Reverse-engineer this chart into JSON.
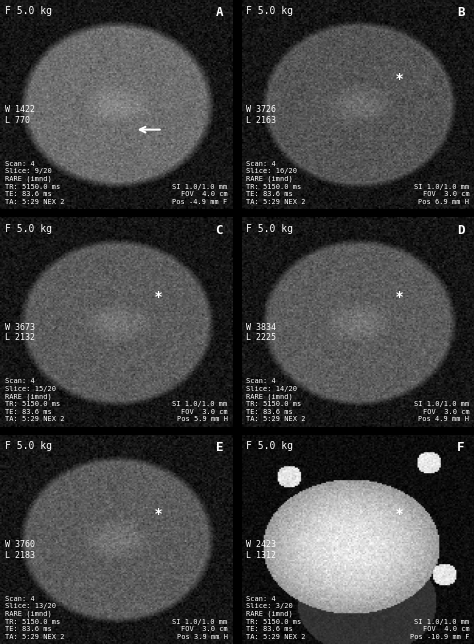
{
  "panels": [
    {
      "label": "A",
      "row": 0,
      "col": 0,
      "top_left_text": "F 5.0 kg",
      "mid_left_text": "W 1422\nL 770",
      "bottom_left_text": "Scan: 4\nSlice: 9/20\nRARE (imnd)\nTR: 5150.0 ms\nTE: 83.6 ms\nTA: 5:29 NEX 2",
      "bottom_right_text": "SI 1.0/1.0 mm\nFOV  4.0 cm\nPos -4.9 mm F",
      "has_star": false,
      "has_arrow": true,
      "bg_color": "#111111",
      "brain_gray": 0.35,
      "bright_spot": true
    },
    {
      "label": "B",
      "row": 0,
      "col": 1,
      "top_left_text": "F 5.0 kg",
      "mid_left_text": "W 3726\nL 2163",
      "bottom_left_text": "Scan: 4\nSlice: 16/20\nRARE (imnd)\nTR: 5150.0 ms\nTE: 83.6 ms\nTA: 5:29 NEX 2",
      "bottom_right_text": "SI 1.0/1.0 mm\nFOV  3.0 cm\nPos 6.9 mm H",
      "has_star": true,
      "has_arrow": false,
      "bg_color": "#111111",
      "brain_gray": 0.25,
      "bright_spot": false
    },
    {
      "label": "C",
      "row": 1,
      "col": 0,
      "top_left_text": "F 5.0 kg",
      "mid_left_text": "W 3673\nL 2132",
      "bottom_left_text": "Scan: 4\nSlice: 15/20\nRARE (imnd)\nTR: 5150.0 ms\nTE: 83.6 ms\nTA: 5:29 NEX 2",
      "bottom_right_text": "SI 1.0/1.0 mm\nFOV  3.0 cm\nPos 5.9 mm H",
      "has_star": true,
      "has_arrow": false,
      "bg_color": "#111111",
      "brain_gray": 0.28,
      "bright_spot": false
    },
    {
      "label": "D",
      "row": 1,
      "col": 1,
      "top_left_text": "F 5.0 kg",
      "mid_left_text": "W 3834\nL 2225",
      "bottom_left_text": "Scan: 4\nSlice: 14/20\nRARE (imnd)\nTR: 5150.0 ms\nTE: 83.6 ms\nTA: 5:29 NEX 2",
      "bottom_right_text": "SI 1.0/1.0 mm\nFOV  3.0 cm\nPos 4.9 mm H",
      "has_star": true,
      "has_arrow": false,
      "bg_color": "#111111",
      "brain_gray": 0.28,
      "bright_spot": false
    },
    {
      "label": "E",
      "row": 2,
      "col": 0,
      "top_left_text": "F 5.0 kg",
      "mid_left_text": "W 3760\nL 2183",
      "bottom_left_text": "Scan: 4\nSlice: 13/20\nRARE (imnd)\nTR: 5150.0 ms\nTE: 83.6 ms\nTA: 5:29 NEX 2",
      "bottom_right_text": "SI 1.0/1.0 mm\nFOV  3.0 cm\nPos 3.9 mm H",
      "has_star": true,
      "has_arrow": false,
      "bg_color": "#111111",
      "brain_gray": 0.28,
      "bright_spot": false
    },
    {
      "label": "F",
      "row": 2,
      "col": 1,
      "top_left_text": "F 5.0 kg",
      "mid_left_text": "W 2423\nL 1312",
      "bottom_left_text": "Scan: 4\nSlice: 3/20\nRARE (imnd)\nTR: 5150.0 ms\nTE: 83.6 ms\nTA: 5:29 NEX 2",
      "bottom_right_text": "SI 1.0/1.0 mm\nFOV  4.0 cm\nPos -10.9 mm F",
      "has_star": true,
      "has_arrow": false,
      "bg_color": "#111111",
      "brain_gray": 0.35,
      "bright_spot": true,
      "is_bright_panel": true
    }
  ],
  "fig_width": 4.74,
  "fig_height": 6.44,
  "dpi": 100,
  "bg_color": "#1a1a1a",
  "text_color": "white",
  "label_fontsize": 7,
  "panel_label_fontsize": 9
}
